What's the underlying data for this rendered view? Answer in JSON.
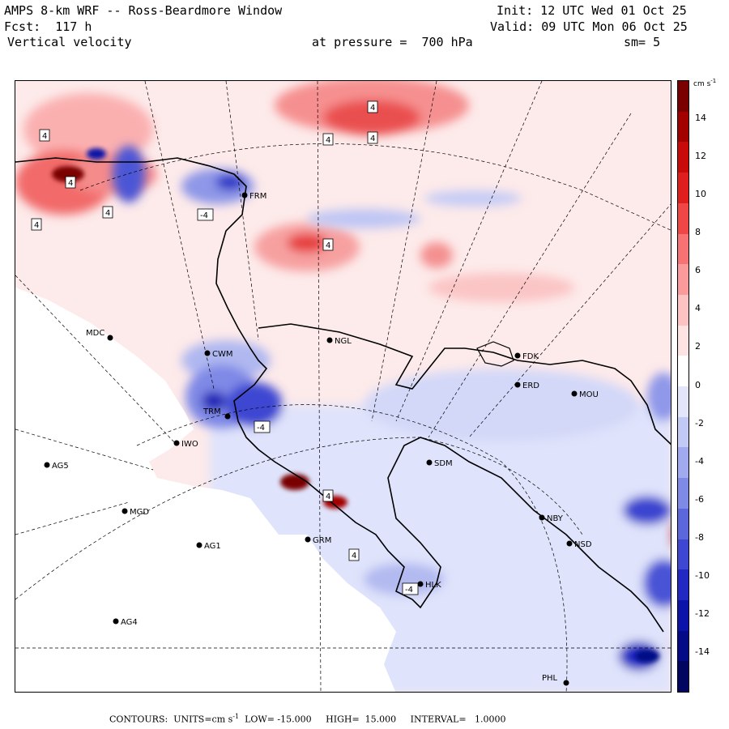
{
  "header": {
    "title": "AMPS 8-km WRF -- Ross-Beardmore Window",
    "forecast": "Fcst:  117 h",
    "field": "Vertical velocity",
    "init": "Init: 12 UTC Wed 01 Oct 25",
    "valid": "Valid: 09 UTC Mon 06 Oct 25",
    "pressure": "at pressure =  700 hPa",
    "smoothing": "sm= 5"
  },
  "colorbar": {
    "units": "cm s",
    "units_exp": "-1",
    "ticks": [
      "14",
      "12",
      "10",
      "8",
      "6",
      "4",
      "2",
      "0",
      "-2",
      "-4",
      "-6",
      "-8",
      "-10",
      "-12",
      "-14"
    ],
    "colors": [
      "#7a0000",
      "#a30000",
      "#c80a0a",
      "#e01e1e",
      "#f04646",
      "#f77272",
      "#fb9a9a",
      "#fdc2c2",
      "#fee3e3",
      "#ffffff",
      "#e3e6fb",
      "#c3c9f5",
      "#a2aaef",
      "#7f89e6",
      "#5c67dc",
      "#3d47d2",
      "#2129c2",
      "#0c13a8",
      "#050a86",
      "#030660"
    ]
  },
  "stations": [
    {
      "id": "MDC",
      "label": "MDC"
    },
    {
      "id": "NGL",
      "label": "NGL"
    },
    {
      "id": "FDK",
      "label": "FDK"
    },
    {
      "id": "ERD",
      "label": "ERD"
    },
    {
      "id": "MOU",
      "label": "MOU"
    },
    {
      "id": "IWO",
      "label": "IWO"
    },
    {
      "id": "AG5",
      "label": "AG5"
    },
    {
      "id": "SDM",
      "label": "SDM"
    },
    {
      "id": "MGD",
      "label": "MGD"
    },
    {
      "id": "NBY",
      "label": "NBY"
    },
    {
      "id": "AG1",
      "label": "AG1"
    },
    {
      "id": "GRM",
      "label": "GRM"
    },
    {
      "id": "NSD",
      "label": "NSD"
    },
    {
      "id": "HLK",
      "label": "HLK"
    },
    {
      "id": "AG4",
      "label": "AG4"
    },
    {
      "id": "PHL",
      "label": "PHL"
    },
    {
      "id": "FRM",
      "label": "FRM"
    },
    {
      "id": "CWM",
      "label": "CWM"
    },
    {
      "id": "TRM",
      "label": "TRM"
    }
  ],
  "contour_labels": {
    "pos": "4",
    "neg": "-4"
  },
  "footer": {
    "contours": "CONTOURS:",
    "units_label": "UNITS=cm s",
    "units_exp": "-1",
    "low": "LOW= -15.000",
    "high": "HIGH=  15.000",
    "interval": "INTERVAL=   1.0000"
  }
}
